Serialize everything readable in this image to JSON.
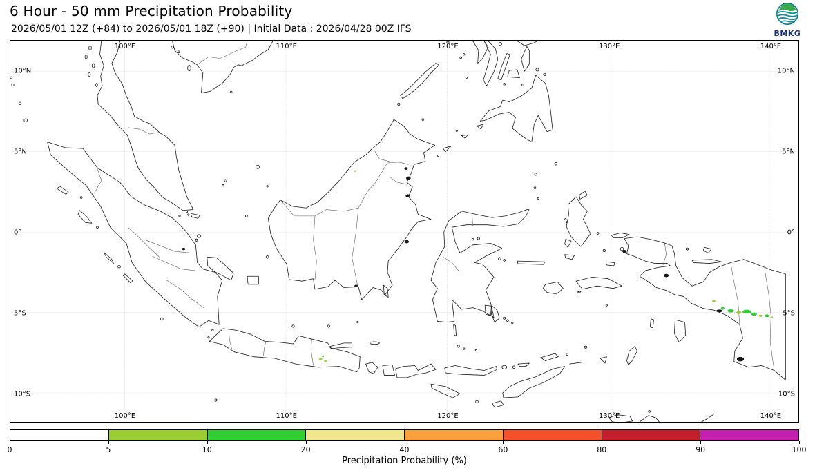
{
  "header": {
    "title": "6 Hour - 50 mm Precipitation Probability",
    "subtitle": "2026/05/01 12Z (+84) to 2026/05/01 18Z (+90) | Initial Data : 2026/04/28 00Z IFS"
  },
  "logo": {
    "text": "BMKG"
  },
  "map": {
    "extent": {
      "lon_min": 92.9,
      "lon_max": 141.8,
      "lat_min": -11.8,
      "lat_max": 11.9
    },
    "lon_ticks": [
      {
        "label": "100°E",
        "lon": 100
      },
      {
        "label": "110°E",
        "lon": 110
      },
      {
        "label": "120°E",
        "lon": 120
      },
      {
        "label": "130°E",
        "lon": 130
      },
      {
        "label": "140°E",
        "lon": 140
      }
    ],
    "lat_ticks": [
      {
        "label": "10°N",
        "lat": 10
      },
      {
        "label": "5°N",
        "lat": 5
      },
      {
        "label": "0°",
        "lat": 0
      },
      {
        "label": "5°S",
        "lat": -5
      },
      {
        "label": "10°S",
        "lat": -10
      }
    ]
  },
  "precip_spots": [
    {
      "lon": 136.55,
      "lat": -4.3,
      "rx": 0.1,
      "ry": 0.07,
      "color": "#9acd32"
    },
    {
      "lon": 137.1,
      "lat": -4.75,
      "rx": 0.12,
      "ry": 0.08,
      "color": "#32cd32"
    },
    {
      "lon": 137.6,
      "lat": -4.9,
      "rx": 0.2,
      "ry": 0.1,
      "color": "#32cd32"
    },
    {
      "lon": 138.1,
      "lat": -5.0,
      "rx": 0.15,
      "ry": 0.09,
      "color": "#9acd32"
    },
    {
      "lon": 138.6,
      "lat": -4.95,
      "rx": 0.27,
      "ry": 0.12,
      "color": "#32cd32"
    },
    {
      "lon": 139.05,
      "lat": -5.1,
      "rx": 0.17,
      "ry": 0.1,
      "color": "#32cd32"
    },
    {
      "lon": 139.45,
      "lat": -5.2,
      "rx": 0.11,
      "ry": 0.07,
      "color": "#9acd32"
    },
    {
      "lon": 139.85,
      "lat": -5.2,
      "rx": 0.14,
      "ry": 0.08,
      "color": "#32cd32"
    },
    {
      "lon": 140.15,
      "lat": -5.3,
      "rx": 0.08,
      "ry": 0.05,
      "color": "#9acd32"
    },
    {
      "lon": 112.15,
      "lat": -7.9,
      "rx": 0.1,
      "ry": 0.07,
      "color": "#9acd32"
    },
    {
      "lon": 112.45,
      "lat": -8.02,
      "rx": 0.08,
      "ry": 0.06,
      "color": "#9acd32"
    },
    {
      "lon": 112.3,
      "lat": -7.72,
      "rx": 0.06,
      "ry": 0.05,
      "color": "#32cd32"
    },
    {
      "lon": 114.3,
      "lat": 3.8,
      "rx": 0.07,
      "ry": 0.05,
      "color": "#9acd32"
    }
  ],
  "colorbar": {
    "axis_label": "Precipitation Probability (%)",
    "tick_labels": [
      "0",
      "5",
      "10",
      "20",
      "40",
      "60",
      "80",
      "90",
      "100"
    ],
    "segment_colors": [
      "#ffffff",
      "#9acd32",
      "#32cd32",
      "#f0e68c",
      "#faa13c",
      "#f4512a",
      "#c21e2c",
      "#c320b0"
    ]
  }
}
